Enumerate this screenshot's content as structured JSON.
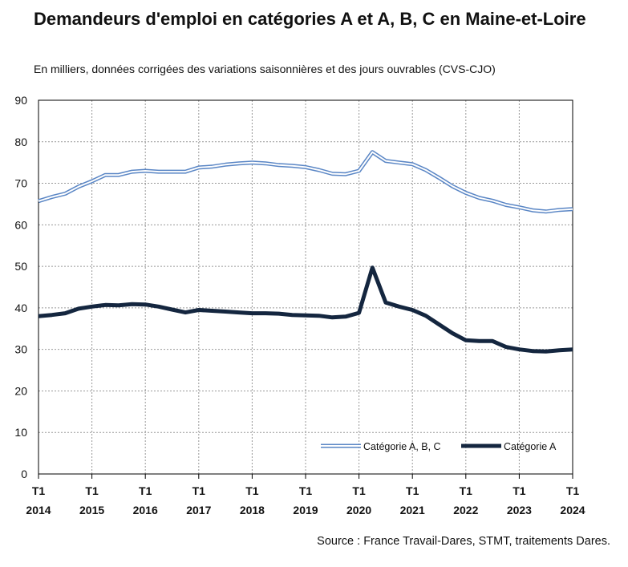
{
  "title": "Demandeurs d'emploi en catégories A et A, B, C en Maine-et-Loire",
  "subtitle": "En milliers, données corrigées des variations saisonnières et des jours ouvrables (CVS-CJO)",
  "source": "Source : France Travail-Dares, STMT, traitements Dares.",
  "colors": {
    "abc": "#5a86c5",
    "a": "#14263f",
    "grid": "#999999"
  },
  "chart_data": {
    "type": "line",
    "title": "Demandeurs d'emploi en catégories A et A, B, C en Maine-et-Loire",
    "subtitle": "En milliers, données corrigées des variations saisonnières et des jours ouvrables (CVS-CJO)",
    "xlabel": "",
    "ylabel": "",
    "ylim": [
      0,
      90
    ],
    "yticks": [
      0,
      10,
      20,
      30,
      40,
      50,
      60,
      70,
      80,
      90
    ],
    "xticks": [
      {
        "q": "T1",
        "year": "2014"
      },
      {
        "q": "T1",
        "year": "2015"
      },
      {
        "q": "T1",
        "year": "2016"
      },
      {
        "q": "T1",
        "year": "2017"
      },
      {
        "q": "T1",
        "year": "2018"
      },
      {
        "q": "T1",
        "year": "2019"
      },
      {
        "q": "T1",
        "year": "2020"
      },
      {
        "q": "T1",
        "year": "2021"
      },
      {
        "q": "T1",
        "year": "2022"
      },
      {
        "q": "T1",
        "year": "2023"
      },
      {
        "q": "T1",
        "year": "2024"
      }
    ],
    "grid": true,
    "legend_position": "bottom-right",
    "x": [
      "2014 T1",
      "2014 T2",
      "2014 T3",
      "2014 T4",
      "2015 T1",
      "2015 T2",
      "2015 T3",
      "2015 T4",
      "2016 T1",
      "2016 T2",
      "2016 T3",
      "2016 T4",
      "2017 T1",
      "2017 T2",
      "2017 T3",
      "2017 T4",
      "2018 T1",
      "2018 T2",
      "2018 T3",
      "2018 T4",
      "2019 T1",
      "2019 T2",
      "2019 T3",
      "2019 T4",
      "2020 T1",
      "2020 T2",
      "2020 T3",
      "2020 T4",
      "2021 T1",
      "2021 T2",
      "2021 T3",
      "2021 T4",
      "2022 T1",
      "2022 T2",
      "2022 T3",
      "2022 T4",
      "2023 T1",
      "2023 T2",
      "2023 T3",
      "2023 T4",
      "2024 T1"
    ],
    "series": [
      {
        "name": "Catégorie A, B, C",
        "style": "double-line",
        "values": [
          65.7,
          66.7,
          67.5,
          69.2,
          70.5,
          72.0,
          72.0,
          72.8,
          73.0,
          72.8,
          72.8,
          72.8,
          73.8,
          74.0,
          74.5,
          74.8,
          75.0,
          74.8,
          74.4,
          74.2,
          73.9,
          73.2,
          72.3,
          72.2,
          73.0,
          77.5,
          75.4,
          75.0,
          74.6,
          73.2,
          71.3,
          69.3,
          67.7,
          66.5,
          65.8,
          64.8,
          64.2,
          63.5,
          63.2,
          63.6,
          63.8
        ]
      },
      {
        "name": "Catégorie A",
        "style": "thick-line",
        "values": [
          38.0,
          38.3,
          38.7,
          39.8,
          40.3,
          40.7,
          40.6,
          40.9,
          40.8,
          40.3,
          39.6,
          38.9,
          39.5,
          39.3,
          39.1,
          38.9,
          38.7,
          38.7,
          38.6,
          38.3,
          38.2,
          38.1,
          37.7,
          37.9,
          38.8,
          49.7,
          41.3,
          40.3,
          39.5,
          38.1,
          36.0,
          33.9,
          32.2,
          32.0,
          32.0,
          30.6,
          30.0,
          29.6,
          29.5,
          29.8,
          30.0
        ]
      }
    ]
  }
}
